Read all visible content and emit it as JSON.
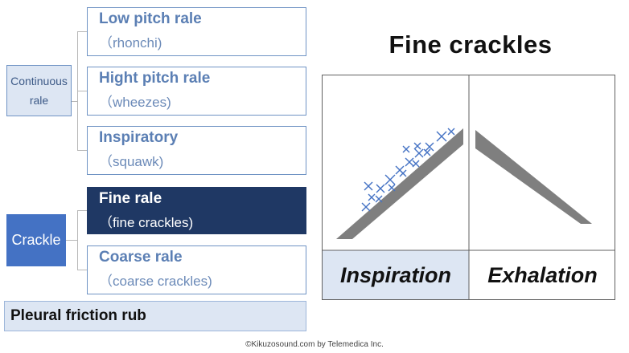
{
  "left": {
    "continuous_label": "Continuous\nrale",
    "crackle_label": "Crackle",
    "items": [
      {
        "main": "Low pitch rale",
        "sub": "（rhonchi)",
        "selected": false
      },
      {
        "main": "Hight pitch rale",
        "sub": "（wheezes)",
        "selected": false
      },
      {
        "main": "Inspiratory",
        "sub": "（squawk)",
        "selected": false
      },
      {
        "main": "Fine rale",
        "sub": "（fine crackles)",
        "selected": true
      },
      {
        "main": "Coarse rale",
        "sub": "（coarse crackles)",
        "selected": false
      }
    ],
    "pleural": "Pleural friction rub"
  },
  "right": {
    "title": "Fine crackles",
    "inspiration_label": "Inspiration",
    "exhalation_label": "Exhalation"
  },
  "footer": "©Kikuzosound.com by Telemedica Inc.",
  "colors": {
    "box_border": "#6f93c4",
    "category_fill": "#dde6f3",
    "crackle_fill": "#4472c4",
    "selected_fill": "#1f3864",
    "text_blue": "#5b7fb4",
    "slope_gray": "#7f7f7f",
    "cross_blue": "#4472c4"
  }
}
